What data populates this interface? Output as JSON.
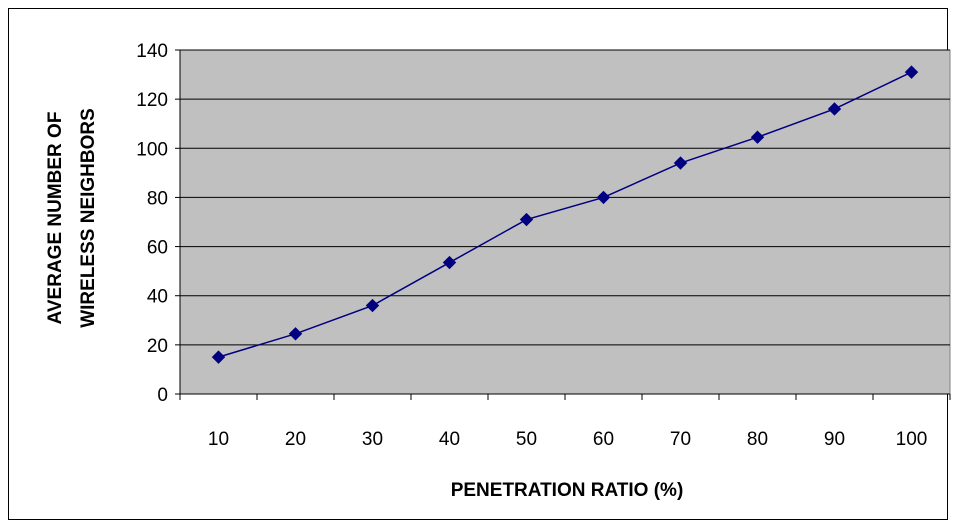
{
  "chart_data": {
    "type": "line",
    "title": "",
    "xlabel": "PENETRATION RATIO (%)",
    "ylabel_lines": [
      "AVERAGE NUMBER OF",
      "WIRELESS NEIGHBORS"
    ],
    "categories": [
      "10",
      "20",
      "30",
      "40",
      "50",
      "60",
      "70",
      "80",
      "90",
      "100"
    ],
    "series": [
      {
        "values": [
          15,
          24.5,
          36,
          53.5,
          71,
          80,
          94,
          104.5,
          116,
          131
        ],
        "color": "#000080",
        "marker": "diamond"
      }
    ],
    "ylim": [
      0,
      140
    ],
    "yticks": [
      "0",
      "20",
      "40",
      "60",
      "80",
      "100",
      "120",
      "140"
    ],
    "grid": true,
    "plot_background": "#c0c0c0",
    "gridline_color": "#000000"
  }
}
